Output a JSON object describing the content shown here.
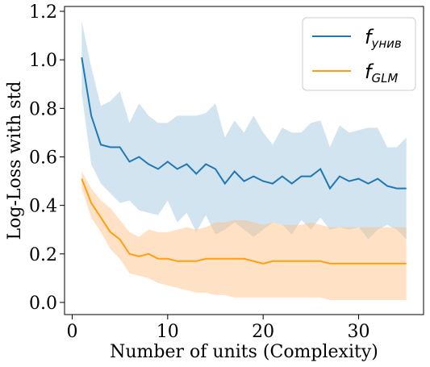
{
  "chart_data": {
    "type": "line",
    "xlabel": "Number of units (Complexity)",
    "ylabel": "Log-Loss with std",
    "xlim": [
      -0.8,
      36.8
    ],
    "ylim": [
      -0.05,
      1.22
    ],
    "xticks": [
      0,
      10,
      20,
      30
    ],
    "yticks": [
      0.0,
      0.2,
      0.4,
      0.6,
      0.8,
      1.0,
      1.2
    ],
    "xtick_labels": [
      "0",
      "10",
      "20",
      "30"
    ],
    "ytick_labels": [
      "0.0",
      "0.2",
      "0.4",
      "0.6",
      "0.8",
      "1.0",
      "1.2"
    ],
    "legend_position": "top-right",
    "x": [
      1,
      2,
      3,
      4,
      5,
      6,
      7,
      8,
      9,
      10,
      11,
      12,
      13,
      14,
      15,
      16,
      17,
      18,
      19,
      20,
      21,
      22,
      23,
      24,
      25,
      26,
      27,
      28,
      29,
      30,
      31,
      32,
      33,
      34,
      35
    ],
    "series": [
      {
        "name_base": "f",
        "name_sub": "унив",
        "color": "#1f77b4",
        "fill": "#1f77b4",
        "values": [
          1.01,
          0.77,
          0.65,
          0.64,
          0.64,
          0.58,
          0.6,
          0.57,
          0.55,
          0.58,
          0.55,
          0.57,
          0.53,
          0.57,
          0.55,
          0.49,
          0.54,
          0.5,
          0.52,
          0.5,
          0.49,
          0.52,
          0.49,
          0.52,
          0.52,
          0.55,
          0.47,
          0.52,
          0.5,
          0.51,
          0.49,
          0.51,
          0.48,
          0.47,
          0.47
        ],
        "upper": [
          1.16,
          0.97,
          0.81,
          0.83,
          0.87,
          0.74,
          0.82,
          0.77,
          0.74,
          0.74,
          0.77,
          0.77,
          0.77,
          0.78,
          0.82,
          0.68,
          0.75,
          0.7,
          0.77,
          0.7,
          0.65,
          0.72,
          0.7,
          0.7,
          0.74,
          0.75,
          0.64,
          0.73,
          0.7,
          0.71,
          0.72,
          0.72,
          0.64,
          0.64,
          0.68
        ],
        "lower": [
          0.86,
          0.57,
          0.49,
          0.45,
          0.41,
          0.42,
          0.38,
          0.37,
          0.36,
          0.42,
          0.33,
          0.37,
          0.29,
          0.36,
          0.28,
          0.3,
          0.33,
          0.3,
          0.27,
          0.3,
          0.33,
          0.32,
          0.28,
          0.34,
          0.3,
          0.35,
          0.3,
          0.31,
          0.3,
          0.31,
          0.26,
          0.3,
          0.32,
          0.3,
          0.26
        ]
      },
      {
        "name_base": "f",
        "name_sub": "GLM",
        "color": "#ff9f10",
        "fill": "#ffbf80",
        "values": [
          0.51,
          0.41,
          0.35,
          0.29,
          0.26,
          0.2,
          0.19,
          0.2,
          0.18,
          0.18,
          0.17,
          0.17,
          0.17,
          0.18,
          0.18,
          0.18,
          0.18,
          0.18,
          0.17,
          0.16,
          0.17,
          0.17,
          0.17,
          0.17,
          0.17,
          0.17,
          0.16,
          0.16,
          0.16,
          0.16,
          0.16,
          0.16,
          0.16,
          0.16,
          0.16
        ],
        "upper": [
          0.54,
          0.47,
          0.42,
          0.39,
          0.34,
          0.29,
          0.27,
          0.3,
          0.29,
          0.29,
          0.3,
          0.31,
          0.3,
          0.31,
          0.33,
          0.33,
          0.34,
          0.34,
          0.33,
          0.32,
          0.33,
          0.32,
          0.32,
          0.32,
          0.33,
          0.32,
          0.31,
          0.31,
          0.31,
          0.31,
          0.31,
          0.31,
          0.31,
          0.31,
          0.31
        ],
        "lower": [
          0.47,
          0.35,
          0.29,
          0.22,
          0.18,
          0.12,
          0.11,
          0.1,
          0.08,
          0.07,
          0.06,
          0.05,
          0.04,
          0.04,
          0.03,
          0.03,
          0.02,
          0.02,
          0.02,
          0.02,
          0.02,
          0.02,
          0.02,
          0.02,
          0.02,
          0.02,
          0.01,
          0.01,
          0.01,
          0.01,
          0.01,
          0.01,
          0.01,
          0.01,
          0.01
        ]
      }
    ]
  }
}
